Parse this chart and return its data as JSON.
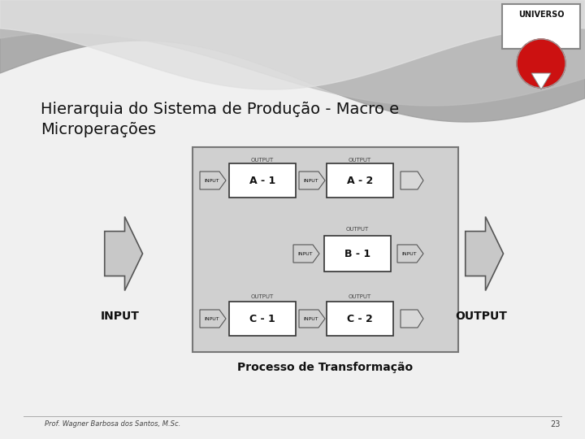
{
  "title_line1": "Hierarquia do Sistema de Produção - Macro e",
  "title_line2": "Microperações",
  "bg_color": "#f0f0f0",
  "wave_colors": [
    "#c8c8c8",
    "#d8d8d8",
    "#e0e0e0"
  ],
  "container_bg": "#d0d0d0",
  "container_border": "#777777",
  "box_bg": "#ffffff",
  "box_border": "#333333",
  "arrow_bg": "#d0d0d0",
  "arrow_border": "#555555",
  "big_arrow_bg": "#c8c8c8",
  "big_arrow_border": "#555555",
  "text_color": "#111111",
  "output_label_color": "#444444",
  "footer_text": "Prof. Wagner Barbosa dos Santos, M.Sc.",
  "footer_page": "23",
  "process_label": "Processo de Transformação",
  "input_label": "INPUT",
  "output_label": "OUTPUT",
  "logo_rect_color": "#ffffff",
  "logo_rect_border": "#888888",
  "logo_circle_color": "#cc1111",
  "logo_text": "UNIVERSO"
}
